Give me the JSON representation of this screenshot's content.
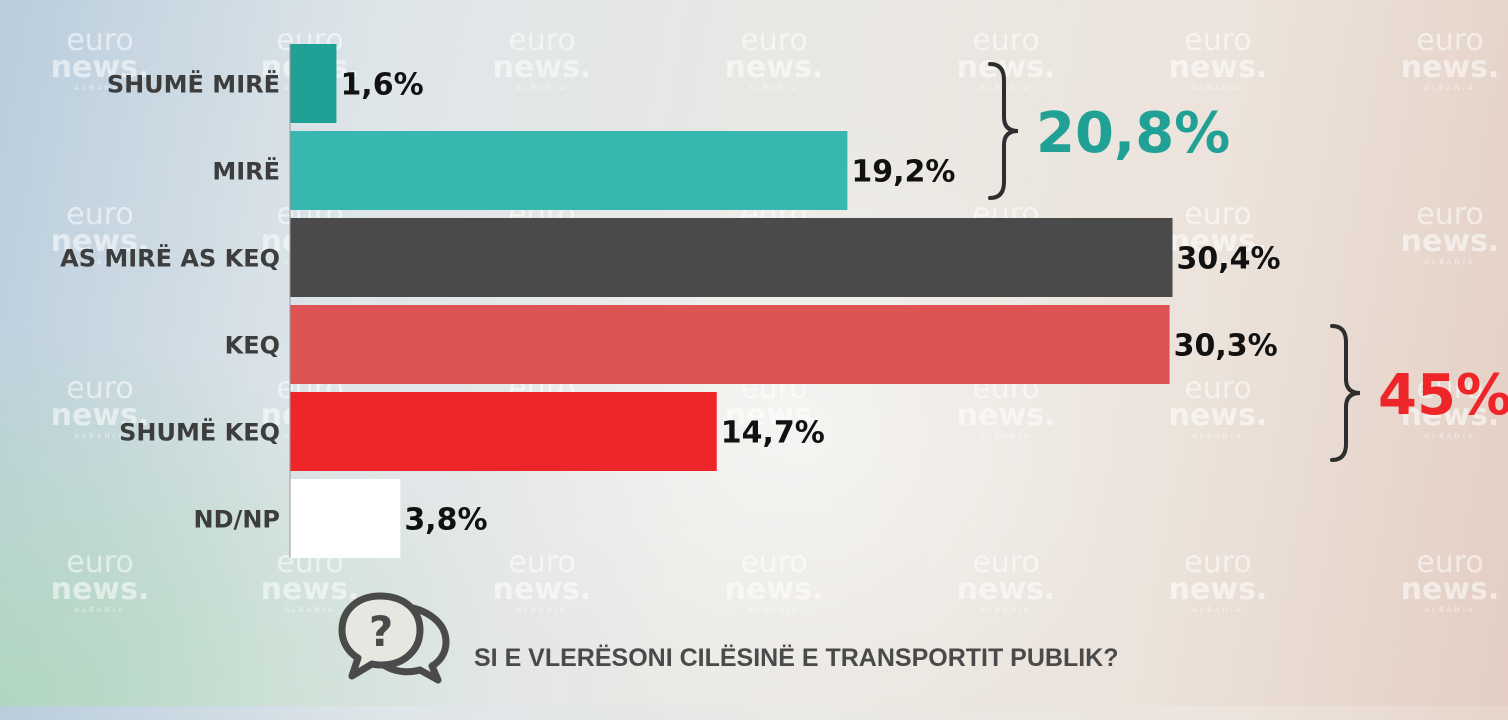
{
  "chart_data": {
    "type": "bar",
    "orientation": "horizontal",
    "title": "SI E VLERËSONI CILËSINË E TRANSPORTIT PUBLIK?",
    "xlabel": "",
    "ylabel": "",
    "xlim": [
      0,
      30.4
    ],
    "grid": false,
    "categories": [
      "SHUMË MIRË",
      "MIRË",
      "AS MIRË AS KEQ",
      "KEQ",
      "SHUMË KEQ",
      "ND/NP"
    ],
    "values": [
      1.6,
      19.2,
      30.4,
      30.3,
      14.7,
      3.8
    ],
    "value_labels": [
      "1,6%",
      "19,2%",
      "30,4%",
      "30,3%",
      "14,7%",
      "3,8%"
    ],
    "colors": [
      "#21a195",
      "#38b7b0",
      "#4a4a4a",
      "#de5455",
      "#ee2629",
      "#ffffff"
    ],
    "groups": [
      {
        "label": "20,8%",
        "from": 0,
        "to": 1,
        "color": "#21a195"
      },
      {
        "label": "45%",
        "from": 3,
        "to": 4,
        "color": "#ee2629"
      }
    ]
  },
  "watermark": {
    "line1": "euro",
    "line2": "news.",
    "line3": "ALBANIA"
  },
  "icons": {
    "question": "question-chat-bubbles-icon"
  }
}
